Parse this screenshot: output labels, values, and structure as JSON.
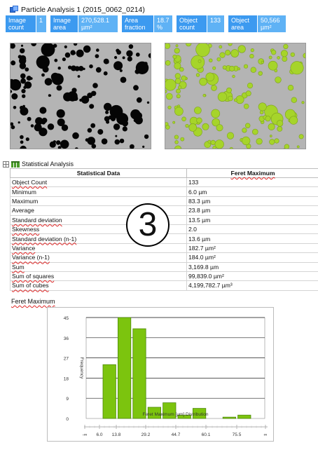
{
  "header": {
    "title": "Particle Analysis 1 (2015_0062_0214)"
  },
  "stats": [
    {
      "label_line1": "Image",
      "label_line2": "count",
      "value_line1": "1",
      "value_line2": ""
    },
    {
      "label_line1": "Image",
      "label_line2": "area",
      "value_line1": "270,528.1",
      "value_line2": "µm²"
    },
    {
      "label_line1": "Area",
      "label_line2": "fraction",
      "value_line1": "18.7",
      "value_line2": "%"
    },
    {
      "label_line1": "Object",
      "label_line2": "count",
      "value_line1": "133",
      "value_line2": ""
    },
    {
      "label_line1": "Object",
      "label_line2": "area",
      "value_line1": "50,566",
      "value_line2": "µm²"
    }
  ],
  "colors": {
    "stat_label_bg": "#3c9af0",
    "stat_value_bg": "#5fb2f5",
    "bar_green": "#7cc40e",
    "bar_green_dark": "#4e8a0a",
    "image_bg": "#b4b4b4",
    "particle_green": "#a6d42a"
  },
  "statistical_analysis": {
    "heading": "Statistical Analysis",
    "columns": [
      "Statistical Data",
      "Feret Maximum"
    ],
    "rows": [
      {
        "name": "Object Count",
        "value": "133"
      },
      {
        "name": "Minimum",
        "value": "6.0 µm"
      },
      {
        "name": "Maximum",
        "value": "83.3 µm"
      },
      {
        "name": "Average",
        "value": "23.8 µm"
      },
      {
        "name": "Standard deviation",
        "value": "13.5 µm"
      },
      {
        "name": "Skewness",
        "value": "2.0"
      },
      {
        "name": "Standard deviation (n-1)",
        "value": "13.6 µm"
      },
      {
        "name": "Variance",
        "value": "182.7 µm²"
      },
      {
        "name": "Variance (n-1)",
        "value": "184.0 µm²"
      },
      {
        "name": "Sum",
        "value": "3,169.8 µm"
      },
      {
        "name": "Sum of squares",
        "value": "99,839.0 µm²"
      },
      {
        "name": "Sum of cubes",
        "value": "4,199,782.7 µm³"
      }
    ]
  },
  "badge": {
    "text": "3"
  },
  "histogram": {
    "title": "Feret Maximum",
    "chart_data": {
      "type": "bar",
      "xlabel": "Feret Maximum  [µm]  Distribution",
      "ylabel": "Frequency",
      "ylim": [
        0,
        45
      ],
      "yticks": [
        "0",
        "9",
        "18",
        "27",
        "36",
        "45"
      ],
      "xticks": [
        "-∞",
        "6.0",
        "13.8",
        "29.2",
        "44.7",
        "60.1",
        "75.5",
        "∞"
      ],
      "bins": [
        {
          "from": 6.0,
          "to": 13.8,
          "value": 24
        },
        {
          "from": 13.8,
          "to": 21.5,
          "value": 45
        },
        {
          "from": 21.5,
          "to": 29.2,
          "value": 40
        },
        {
          "from": 29.2,
          "to": 37.0,
          "value": 5
        },
        {
          "from": 37.0,
          "to": 44.7,
          "value": 7
        },
        {
          "from": 44.7,
          "to": 52.4,
          "value": 1.5
        },
        {
          "from": 52.4,
          "to": 60.1,
          "value": 4.5
        },
        {
          "from": 60.1,
          "to": 67.8,
          "value": 0
        },
        {
          "from": 67.8,
          "to": 75.5,
          "value": 0.6
        },
        {
          "from": 75.5,
          "to": 83.3,
          "value": 1.5
        }
      ]
    }
  }
}
